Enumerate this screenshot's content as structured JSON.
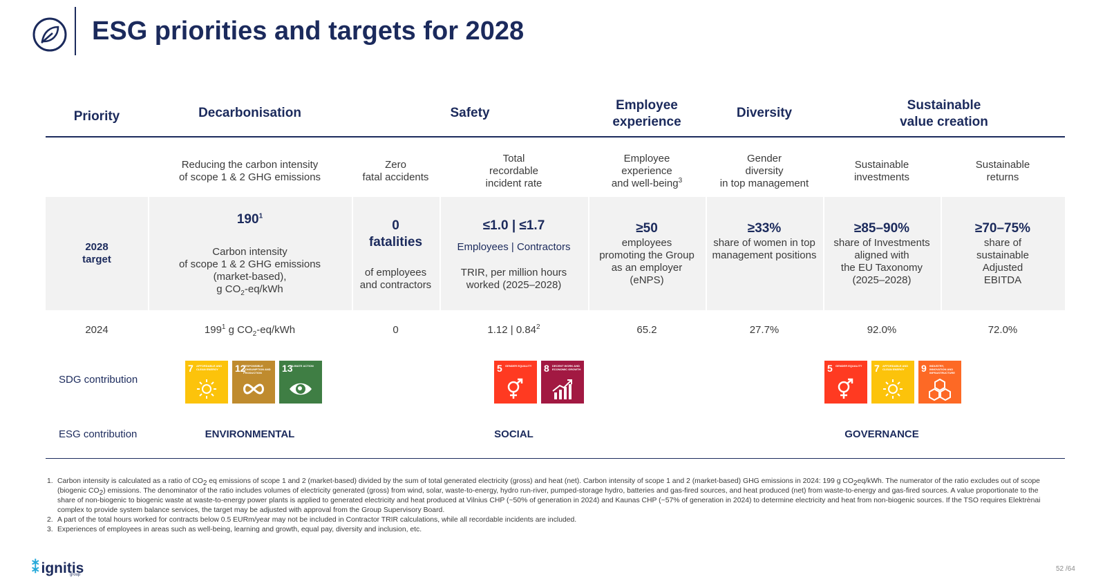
{
  "title": "ESG priorities and targets for 2028",
  "header": {
    "priority": "Priority",
    "decarbonisation": "Decarbonisation",
    "safety": "Safety",
    "employee_experience": "Employee\nexperience",
    "diversity": "Diversity",
    "sustainable_value": "Sustainable\nvalue creation"
  },
  "subheaders": {
    "carbon": "Reducing the carbon intensity\nof scope 1 & 2 GHG emissions",
    "zero_fatal": "Zero\nfatal accidents",
    "trir": "Total\nrecordable\nincident rate",
    "employee": "Employee\nexperience\nand well-being",
    "employee_sup": "3",
    "gender": "Gender\ndiversity\nin top management",
    "sust_inv": "Sustainable\ninvestments",
    "sust_ret": "Sustainable\nreturns"
  },
  "target_row": {
    "label": "2028\ntarget",
    "carbon": {
      "value": "190",
      "sup": "1",
      "desc_line1": "Carbon intensity\nof scope 1 & 2 GHG emissions\n(market-based),",
      "desc_pre": "g CO",
      "desc_sub": "2",
      "desc_post": "-eq/kWh"
    },
    "fatal": {
      "value": "0\nfatalities",
      "desc": "of employees\nand contractors"
    },
    "trir": {
      "value": "≤1.0 | ≤1.7",
      "legend": "Employees | Contractors",
      "desc": "TRIR, per million hours\nworked (2025–2028)"
    },
    "enps": {
      "value": "≥50",
      "desc": "employees\npromoting the Group\nas an employer\n(eNPS)"
    },
    "women": {
      "value": "≥33%",
      "desc": "share of women in top\nmanagement positions"
    },
    "invest": {
      "value": "≥85–90%",
      "desc": "share of Investments\naligned with\nthe EU Taxonomy\n(2025–2028)"
    },
    "returns": {
      "value": "≥70–75%",
      "desc": "share of\nsustainable\nAdjusted\nEBITDA"
    }
  },
  "actual_row": {
    "label": "2024",
    "carbon_pre": "199",
    "carbon_sup": "1",
    "carbon_mid": " g CO",
    "carbon_sub": "2",
    "carbon_post": "-eq/kWh",
    "fatal": "0",
    "trir": "1.12 | 0.84",
    "trir_sup": "2",
    "enps": "65.2",
    "women": "27.7%",
    "invest": "92.0%",
    "returns": "72.0%"
  },
  "sdg_row": {
    "label": "SDG contribution",
    "tiles": [
      {
        "num": "7",
        "label": "AFFORDABLE AND CLEAN ENERGY",
        "color": "#fcc30b",
        "icon": "sun-icon"
      },
      {
        "num": "12",
        "label": "RESPONSIBLE CONSUMPTION AND PRODUCTION",
        "color": "#bf8b2e",
        "icon": "infinity-icon"
      },
      {
        "num": "13",
        "label": "CLIMATE ACTION",
        "color": "#3f7e44",
        "icon": "eye-globe-icon"
      },
      {
        "num": "5",
        "label": "GENDER EQUALITY",
        "color": "#ff3a21",
        "icon": "gender-icon"
      },
      {
        "num": "8",
        "label": "DECENT WORK AND ECONOMIC GROWTH",
        "color": "#a21942",
        "icon": "growth-chart-icon"
      },
      {
        "num": "5",
        "label": "GENDER EQUALITY",
        "color": "#ff3a21",
        "icon": "gender-icon"
      },
      {
        "num": "7",
        "label": "AFFORDABLE AND CLEAN ENERGY",
        "color": "#fcc30b",
        "icon": "sun-icon"
      },
      {
        "num": "9",
        "label": "INDUSTRY, INNOVATION AND INFRASTRUCTURE",
        "color": "#fd6925",
        "icon": "cubes-icon"
      }
    ]
  },
  "esg_row": {
    "label": "ESG contribution",
    "environmental": "ENVIRONMENTAL",
    "social": "SOCIAL",
    "governance": "GOVERNANCE"
  },
  "footnotes": {
    "f1_num": "1.",
    "f1_a": "Carbon intensity is calculated as a ratio of CO",
    "f1_b": " eq emissions of scope 1 and 2 (market-based) divided by the sum of total generated electricity (gross) and heat (net). Carbon intensity of scope 1 and 2 (market-based) GHG emissions in 2024: 199 g CO",
    "f1_c": "eq/kWh. The numerator of the ratio excludes out of scope (biogenic CO",
    "f1_d": ") emissions. The denominator of the ratio includes volumes of electricity generated (gross) from wind, solar, waste-to-energy, hydro run-river, pumped-storage hydro, batteries and gas-fired sources, and heat produced (net) from waste-to-energy and gas-fired sources. A value proportionate to the share of non-biogenic to biogenic waste at waste-to-energy power plants is applied to generated electricity and heat produced at Vilnius CHP (~50% of generation in 2024) and Kaunas CHP (~57% of generation in 2024) to determine electricity and heat from non-biogenic sources. If the TSO requires Elektrėnai complex to provide system balance services, the target may be adjusted with approval from the Group Supervisory Board.",
    "sub2": "2",
    "f2_num": "2.",
    "f2": "A part of the total hours worked for contracts below 0.5 EURm/year may not be included in Contractor TRIR calculations, while all recordable incidents are included.",
    "f3_num": "3.",
    "f3": "Experiences of employees in areas such as well-being, learning and growth, equal pay, diversity and inclusion, etc."
  },
  "brand": {
    "name": "ignitis",
    "sub": "group"
  },
  "page_number": "52 /64",
  "colors": {
    "navy": "#1b2a5c",
    "band": "#f2f2f2",
    "brand_accent": "#23a8d9"
  }
}
